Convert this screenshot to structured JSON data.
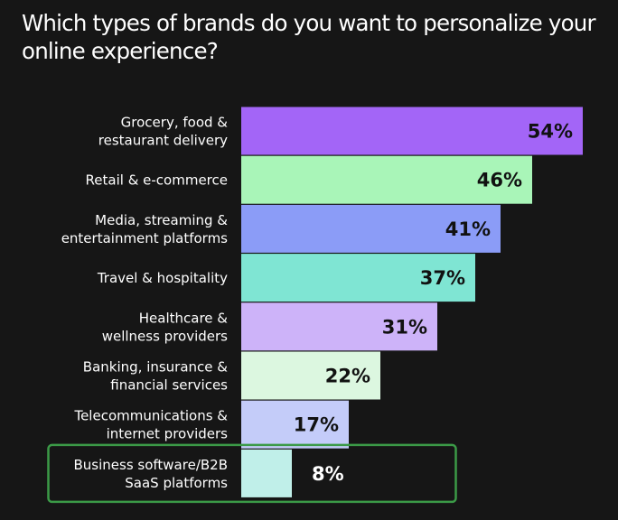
{
  "chart_data": {
    "type": "bar",
    "orientation": "horizontal",
    "title": "Which types of brands do you want to personalize your online experience?",
    "xlabel": "",
    "ylabel": "",
    "xlim": [
      0,
      54
    ],
    "grid": false,
    "legend": "none",
    "unit": "%",
    "categories": [
      [
        "Grocery, food &",
        "restaurant delivery"
      ],
      [
        "Retail & e-commerce"
      ],
      [
        "Media, streaming &",
        "entertainment platforms"
      ],
      [
        "Travel & hospitality"
      ],
      [
        "Healthcare &",
        "wellness providers"
      ],
      [
        "Banking, insurance &",
        "financial services"
      ],
      [
        "Telecommunications &",
        "internet providers"
      ],
      [
        "Business software/B2B",
        "SaaS platforms"
      ]
    ],
    "values": [
      54,
      46,
      41,
      37,
      31,
      22,
      17,
      8
    ],
    "value_labels": [
      "54%",
      "46%",
      "41%",
      "37%",
      "31%",
      "22%",
      "17%",
      "8%"
    ],
    "bar_colors": [
      "#a365f7",
      "#a9f5b8",
      "#8b9cf7",
      "#7fe5d3",
      "#cdb3f9",
      "#dcf7e0",
      "#c4ccf9",
      "#c0efe9"
    ],
    "highlighted_category_index": 7,
    "highlight_color": "#3b9a47"
  }
}
